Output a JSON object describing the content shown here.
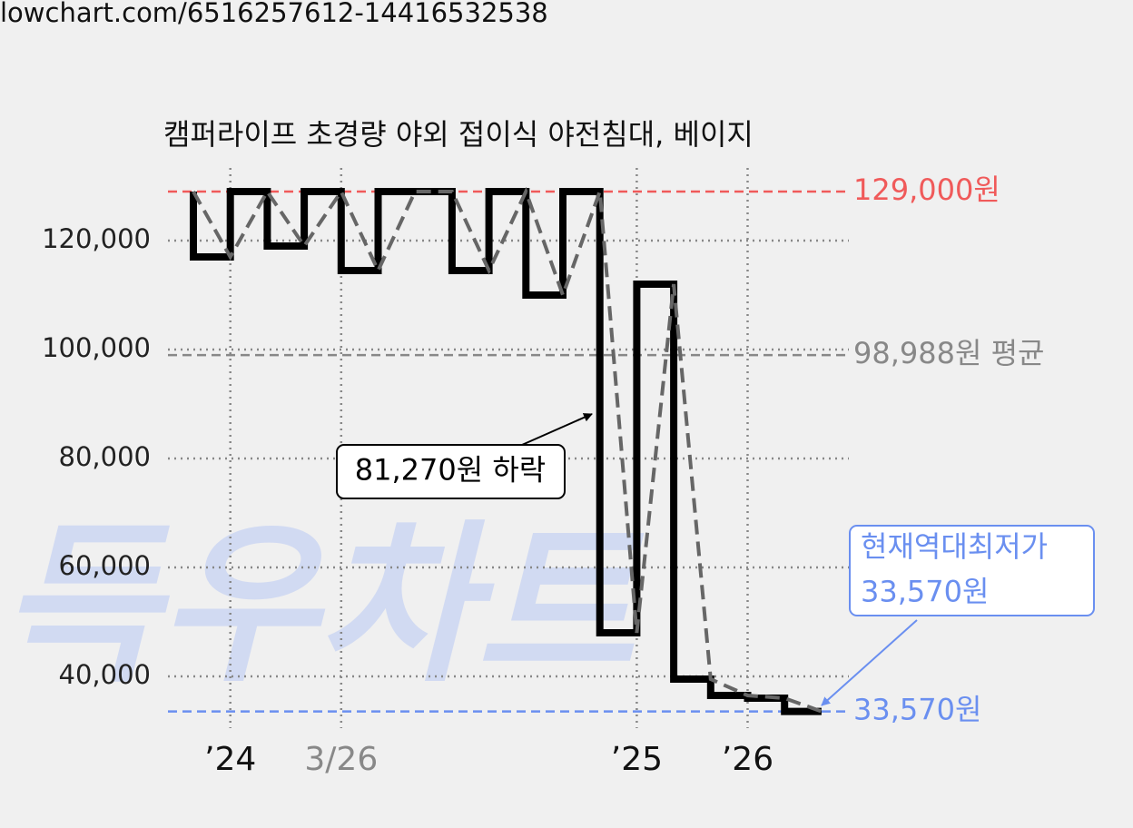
{
  "url": "lowchart.com/6516257612-14416532538",
  "chart_data": {
    "type": "line",
    "title": "캠퍼라이프 초경량 야외 접이식 야전침대, 베이지",
    "watermark": "득우차트",
    "categories": [
      null,
      "’24",
      null,
      null,
      "3/26",
      null,
      null,
      null,
      null,
      null,
      null,
      null,
      "’25",
      null,
      null,
      "’26",
      null,
      null
    ],
    "values": [
      129000,
      117000,
      129000,
      119000,
      129000,
      114500,
      129000,
      129000,
      114500,
      129000,
      110000,
      129000,
      48000,
      112000,
      39500,
      36500,
      36000,
      33570
    ],
    "color": "#000000",
    "trend_color": "#666666",
    "ylim": [
      30000,
      135000
    ],
    "yticks": [
      {
        "value": 40000,
        "label": "40,000"
      },
      {
        "value": 60000,
        "label": "60,000"
      },
      {
        "value": 80000,
        "label": "80,000"
      },
      {
        "value": 100000,
        "label": "100,000"
      },
      {
        "value": 120000,
        "label": "120,000"
      }
    ],
    "grid": true,
    "reference_lines": [
      {
        "value": 129000,
        "label": "129,000원",
        "color": "#f05a5a"
      },
      {
        "value": 98988,
        "label": "98,988원 평균",
        "color": "#888888"
      },
      {
        "value": 33570,
        "label": "33,570원",
        "color": "#6a8ff0"
      }
    ],
    "annotations": [
      {
        "lines": [
          "81,270원 하락"
        ],
        "color": "#000000"
      },
      {
        "lines": [
          "현재역대최저가",
          "33,570원"
        ],
        "color": "#6a8ff0"
      }
    ]
  }
}
